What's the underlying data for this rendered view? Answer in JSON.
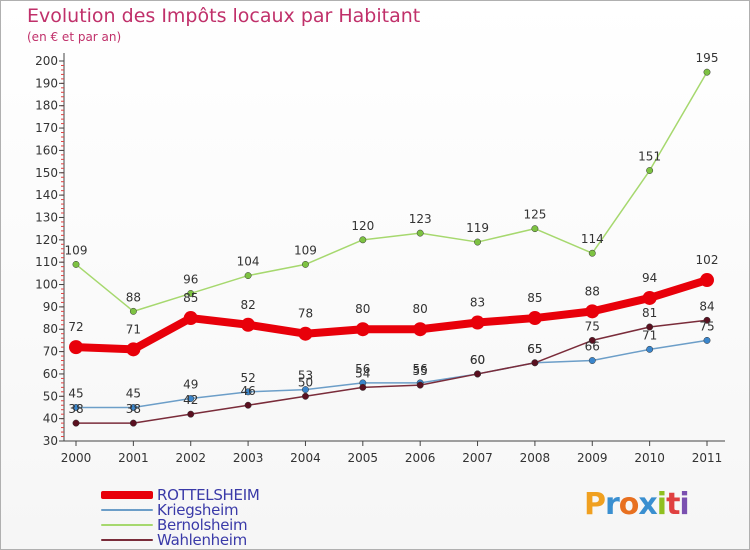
{
  "header": {
    "title": "Evolution des Impôts locaux par Habitant",
    "subtitle": "(en € et par an)"
  },
  "brand": {
    "name": "Proxiti",
    "colors": [
      "#f0a020",
      "#3a8fd0",
      "#e87020",
      "#3a8fd0",
      "#90c020",
      "#e04040",
      "#7a50b0"
    ]
  },
  "chart_data": {
    "type": "line",
    "title": "Evolution des Impôts locaux par Habitant",
    "subtitle": "(en € et par an)",
    "x": [
      "2000",
      "2001",
      "2002",
      "2003",
      "2004",
      "2005",
      "2006",
      "2007",
      "2008",
      "2009",
      "2010",
      "2011"
    ],
    "ylim": [
      30,
      200
    ],
    "yticks": [
      30,
      40,
      50,
      60,
      70,
      80,
      90,
      100,
      110,
      120,
      130,
      140,
      150,
      160,
      170,
      180,
      190,
      200
    ],
    "grid": false,
    "legend": "bottom-left",
    "series": [
      {
        "name": "ROTTELSHEIM",
        "color": "#e8000a",
        "point_color": "#e8000a",
        "width": 8,
        "values": [
          72,
          71,
          85,
          82,
          78,
          80,
          80,
          83,
          85,
          88,
          94,
          102
        ]
      },
      {
        "name": "Kriegsheim",
        "color": "#6c9ec8",
        "point_color": "#3b86cc",
        "width": 1.5,
        "values": [
          45,
          45,
          49,
          52,
          53,
          56,
          56,
          60,
          65,
          66,
          71,
          75
        ]
      },
      {
        "name": "Bernolsheim",
        "color": "#a6d86e",
        "point_color": "#7dc242",
        "width": 1.5,
        "values": [
          109,
          88,
          96,
          104,
          109,
          120,
          123,
          119,
          125,
          114,
          151,
          195
        ]
      },
      {
        "name": "Wahlenheim",
        "color": "#7a2c3a",
        "point_color": "#5a1020",
        "width": 1.5,
        "values": [
          38,
          38,
          42,
          46,
          50,
          54,
          55,
          60,
          65,
          75,
          81,
          84
        ]
      }
    ]
  }
}
